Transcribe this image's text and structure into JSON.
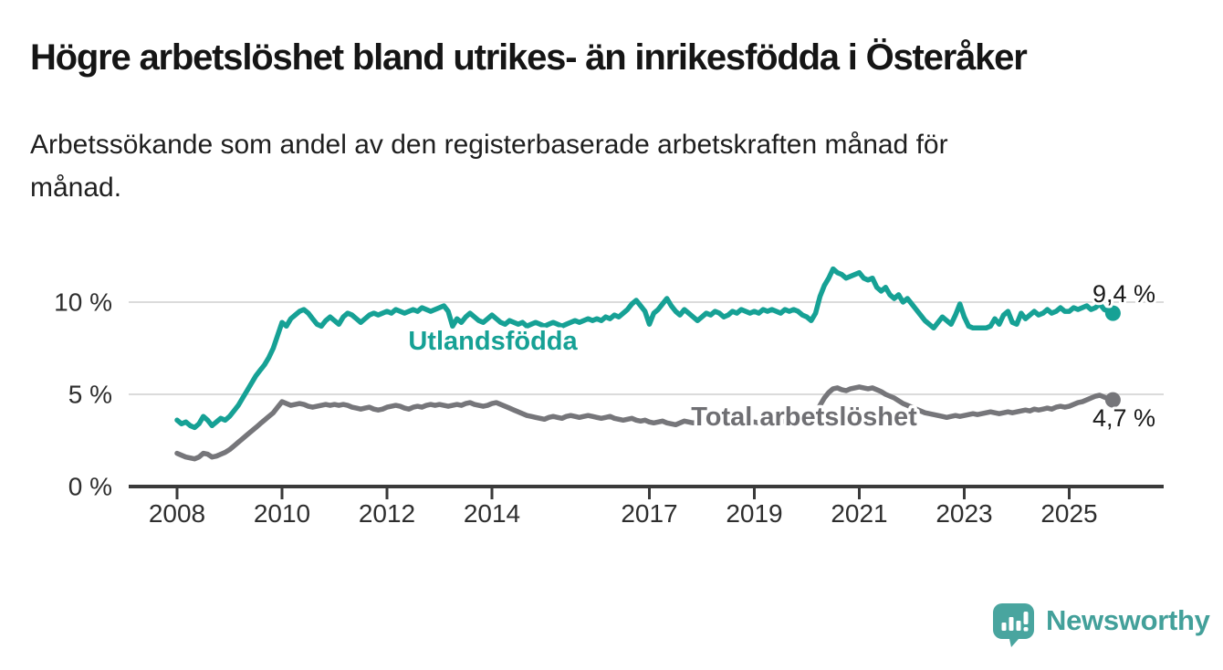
{
  "colors": {
    "accent_teal": "#16A195",
    "line_gray": "#76767A",
    "series_label_gray": "#6F6F73",
    "grid": "#DBDBDB",
    "axis": "#3A3A3A",
    "text_dark": "#1A1A1A",
    "brand_teal": "#49A59F"
  },
  "footer": {
    "brand": "Newsworthy",
    "logo_icon": "newsworthy-speech-bubble-bar-chart-icon"
  },
  "chart_data": {
    "type": "line",
    "title": "Högre arbetslöshet bland utrikes- än inrikesfödda i Österåker",
    "subtitle": "Arbetssökande som andel av den registerbaserade arbetskraften månad för\nmånad.",
    "frequency": "monthly",
    "x_start": "2008-01",
    "x_end": "2025-11",
    "x_tick_labels": [
      "2008",
      "2010",
      "2012",
      "2014",
      "2017",
      "2019",
      "2021",
      "2023",
      "2025"
    ],
    "y_tick_labels": [
      "0 %",
      "5 %",
      "10 %"
    ],
    "y_axis": {
      "min": 0,
      "max": 12.5,
      "gridlines_at": [
        5,
        10
      ]
    },
    "legend_position": "inline-labels",
    "grid": "horizontal-only",
    "series": [
      {
        "name": "Utlandsfödda",
        "color": "#16A195",
        "end_value": 9.4,
        "end_value_label": "9,4 %",
        "values": [
          3.6,
          3.4,
          3.5,
          3.3,
          3.2,
          3.4,
          3.8,
          3.6,
          3.3,
          3.5,
          3.7,
          3.6,
          3.8,
          4.1,
          4.4,
          4.8,
          5.2,
          5.6,
          6.0,
          6.3,
          6.6,
          7.0,
          7.5,
          8.2,
          8.9,
          8.7,
          9.1,
          9.3,
          9.5,
          9.6,
          9.4,
          9.1,
          8.8,
          8.7,
          9.0,
          9.2,
          9.0,
          8.8,
          9.2,
          9.4,
          9.3,
          9.1,
          8.9,
          9.1,
          9.3,
          9.4,
          9.3,
          9.4,
          9.5,
          9.4,
          9.6,
          9.5,
          9.4,
          9.5,
          9.6,
          9.5,
          9.7,
          9.6,
          9.5,
          9.6,
          9.7,
          9.8,
          9.5,
          8.7,
          9.1,
          8.9,
          9.2,
          9.4,
          9.2,
          9.0,
          8.9,
          9.1,
          9.3,
          9.1,
          8.9,
          8.8,
          9.0,
          8.9,
          8.8,
          8.9,
          8.7,
          8.8,
          8.9,
          8.8,
          8.7,
          8.8,
          8.9,
          8.8,
          8.7,
          8.8,
          8.9,
          9.0,
          8.9,
          9.0,
          9.1,
          9.0,
          9.1,
          9.0,
          9.2,
          9.1,
          9.3,
          9.2,
          9.4,
          9.6,
          9.9,
          10.1,
          9.8,
          9.5,
          8.8,
          9.4,
          9.6,
          9.9,
          10.2,
          9.8,
          9.5,
          9.3,
          9.6,
          9.4,
          9.2,
          9.0,
          9.2,
          9.4,
          9.3,
          9.5,
          9.4,
          9.2,
          9.3,
          9.5,
          9.4,
          9.6,
          9.5,
          9.4,
          9.5,
          9.4,
          9.6,
          9.5,
          9.6,
          9.5,
          9.4,
          9.6,
          9.5,
          9.6,
          9.5,
          9.3,
          9.2,
          9.0,
          9.4,
          10.3,
          10.9,
          11.3,
          11.8,
          11.6,
          11.5,
          11.3,
          11.4,
          11.5,
          11.6,
          11.3,
          11.2,
          11.3,
          10.8,
          10.6,
          10.8,
          10.4,
          10.2,
          10.4,
          10.0,
          10.2,
          9.9,
          9.6,
          9.3,
          9.0,
          8.8,
          8.6,
          8.9,
          9.2,
          9.0,
          8.8,
          9.3,
          9.9,
          9.2,
          8.7,
          8.6,
          8.6,
          8.6,
          8.6,
          8.7,
          9.1,
          8.8,
          9.3,
          9.5,
          8.9,
          8.8,
          9.4,
          9.1,
          9.3,
          9.5,
          9.3,
          9.4,
          9.6,
          9.4,
          9.5,
          9.7,
          9.5,
          9.5,
          9.7,
          9.6,
          9.7,
          9.8,
          9.6,
          9.7,
          9.9,
          9.6,
          9.5,
          9.4
        ]
      },
      {
        "name": "Total arbetslöshet",
        "color": "#76767A",
        "end_value": 4.7,
        "end_value_label": "4,7 %",
        "values": [
          1.8,
          1.7,
          1.6,
          1.55,
          1.5,
          1.6,
          1.8,
          1.75,
          1.6,
          1.65,
          1.75,
          1.85,
          2.0,
          2.2,
          2.4,
          2.6,
          2.8,
          3.0,
          3.2,
          3.4,
          3.6,
          3.8,
          4.0,
          4.3,
          4.6,
          4.5,
          4.4,
          4.45,
          4.5,
          4.45,
          4.35,
          4.3,
          4.35,
          4.4,
          4.45,
          4.4,
          4.45,
          4.4,
          4.45,
          4.4,
          4.3,
          4.25,
          4.2,
          4.25,
          4.3,
          4.2,
          4.15,
          4.2,
          4.3,
          4.35,
          4.4,
          4.35,
          4.25,
          4.2,
          4.3,
          4.35,
          4.3,
          4.4,
          4.45,
          4.4,
          4.45,
          4.4,
          4.35,
          4.4,
          4.45,
          4.4,
          4.5,
          4.55,
          4.45,
          4.4,
          4.35,
          4.4,
          4.5,
          4.55,
          4.45,
          4.35,
          4.25,
          4.15,
          4.05,
          3.95,
          3.85,
          3.8,
          3.75,
          3.7,
          3.65,
          3.75,
          3.8,
          3.75,
          3.7,
          3.8,
          3.85,
          3.8,
          3.75,
          3.8,
          3.85,
          3.8,
          3.75,
          3.7,
          3.75,
          3.8,
          3.7,
          3.65,
          3.6,
          3.65,
          3.7,
          3.6,
          3.55,
          3.6,
          3.5,
          3.45,
          3.5,
          3.55,
          3.45,
          3.4,
          3.35,
          3.45,
          3.55,
          3.5,
          3.45,
          3.5,
          3.55,
          3.5,
          3.45,
          3.5,
          3.55,
          3.5,
          3.4,
          3.45,
          3.5,
          3.45,
          3.4,
          3.45,
          3.5,
          3.45,
          3.5,
          3.55,
          3.5,
          3.45,
          3.5,
          3.55,
          3.6,
          3.55,
          3.5,
          3.45,
          3.4,
          3.45,
          3.8,
          4.4,
          4.8,
          5.1,
          5.3,
          5.35,
          5.25,
          5.2,
          5.3,
          5.35,
          5.4,
          5.35,
          5.3,
          5.35,
          5.25,
          5.15,
          5.0,
          4.9,
          4.8,
          4.65,
          4.5,
          4.4,
          4.3,
          4.2,
          4.1,
          4.0,
          3.95,
          3.9,
          3.85,
          3.8,
          3.75,
          3.8,
          3.85,
          3.8,
          3.85,
          3.9,
          3.95,
          3.9,
          3.95,
          4.0,
          4.05,
          4.0,
          3.95,
          4.0,
          4.05,
          4.0,
          4.05,
          4.1,
          4.15,
          4.1,
          4.2,
          4.15,
          4.2,
          4.25,
          4.2,
          4.3,
          4.35,
          4.3,
          4.35,
          4.45,
          4.55,
          4.6,
          4.7,
          4.8,
          4.9,
          4.95,
          4.85,
          4.75,
          4.7
        ]
      }
    ]
  }
}
